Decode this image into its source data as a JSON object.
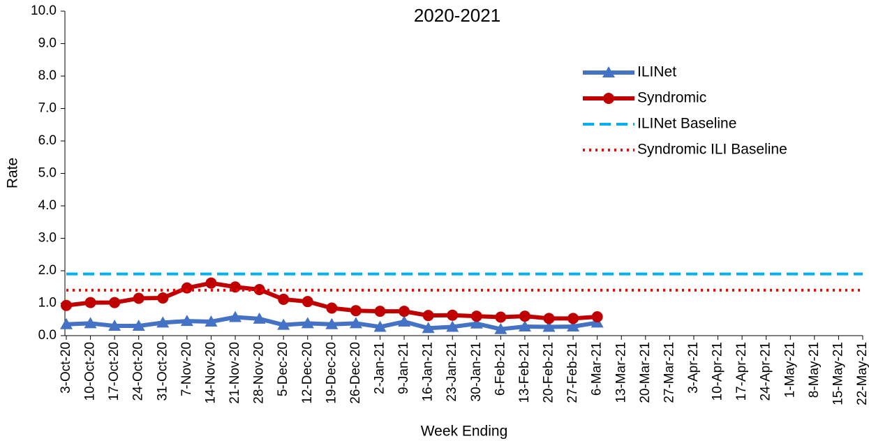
{
  "chart_data": {
    "type": "line",
    "title": "2020-2021",
    "x_label": "Week Ending",
    "y_label": "Rate",
    "categories": [
      "3-Oct-20",
      "10-Oct-20",
      "17-Oct-20",
      "24-Oct-20",
      "31-Oct-20",
      "7-Nov-20",
      "14-Nov-20",
      "21-Nov-20",
      "28-Nov-20",
      "5-Dec-20",
      "12-Dec-20",
      "19-Dec-20",
      "26-Dec-20",
      "2-Jan-21",
      "9-Jan-21",
      "16-Jan-21",
      "23-Jan-21",
      "30-Jan-21",
      "6-Feb-21",
      "13-Feb-21",
      "20-Feb-21",
      "27-Feb-21",
      "6-Mar-21",
      "13-Mar-21",
      "20-Mar-21",
      "27-Mar-21",
      "3-Apr-21",
      "10-Apr-21",
      "17-Apr-21",
      "24-Apr-21",
      "1-May-21",
      "8-May-21",
      "15-May-21",
      "22-May-21"
    ],
    "series": [
      {
        "name": "ILINet",
        "color": "#4472c4",
        "style": "solid",
        "marker": "triangle",
        "values": [
          0.35,
          0.38,
          0.3,
          0.3,
          0.4,
          0.45,
          0.43,
          0.57,
          0.52,
          0.33,
          0.38,
          0.35,
          0.38,
          0.27,
          0.43,
          0.23,
          0.27,
          0.37,
          0.2,
          0.28,
          0.27,
          0.28,
          0.4,
          null,
          null,
          null,
          null,
          null,
          null,
          null,
          null,
          null,
          null,
          null
        ]
      },
      {
        "name": "Syndromic",
        "color": "#c00000",
        "style": "solid",
        "marker": "circle",
        "values": [
          0.93,
          1.02,
          1.02,
          1.15,
          1.16,
          1.47,
          1.62,
          1.5,
          1.42,
          1.12,
          1.05,
          0.85,
          0.77,
          0.75,
          0.75,
          0.62,
          0.63,
          0.6,
          0.57,
          0.6,
          0.53,
          0.53,
          0.58,
          null,
          null,
          null,
          null,
          null,
          null,
          null,
          null,
          null,
          null,
          null
        ]
      },
      {
        "name": "ILINet Baseline",
        "color": "#00b0f0",
        "style": "dashed",
        "values": [
          1.9,
          1.9,
          1.9,
          1.9,
          1.9,
          1.9,
          1.9,
          1.9,
          1.9,
          1.9,
          1.9,
          1.9,
          1.9,
          1.9,
          1.9,
          1.9,
          1.9,
          1.9,
          1.9,
          1.9,
          1.9,
          1.9,
          1.9,
          1.9,
          1.9,
          1.9,
          1.9,
          1.9,
          1.9,
          1.9,
          1.9,
          1.9,
          1.9,
          1.9
        ]
      },
      {
        "name": "Syndromic ILI Baseline",
        "color": "#ff0000",
        "style": "dotted",
        "values": [
          1.4,
          1.4,
          1.4,
          1.4,
          1.4,
          1.4,
          1.4,
          1.4,
          1.4,
          1.4,
          1.4,
          1.4,
          1.4,
          1.4,
          1.4,
          1.4,
          1.4,
          1.4,
          1.4,
          1.4,
          1.4,
          1.4,
          1.4,
          1.4,
          1.4,
          1.4,
          1.4,
          1.4,
          1.4,
          1.4,
          1.4,
          1.4,
          1.4,
          1.4
        ]
      }
    ],
    "ylim": [
      0,
      10
    ],
    "yticks": [
      {
        "value": 0,
        "label": "0.0"
      },
      {
        "value": 1,
        "label": "1.0"
      },
      {
        "value": 2,
        "label": "2.0"
      },
      {
        "value": 3,
        "label": "3.0"
      },
      {
        "value": 4,
        "label": "4.0"
      },
      {
        "value": 5,
        "label": "5.0"
      },
      {
        "value": 6,
        "label": "6.0"
      },
      {
        "value": 7,
        "label": "7.0"
      },
      {
        "value": 8,
        "label": "8.0"
      },
      {
        "value": 9,
        "label": "9.0"
      },
      {
        "value": 10,
        "label": "10.0"
      }
    ],
    "grid": false,
    "legend": "upper right"
  }
}
